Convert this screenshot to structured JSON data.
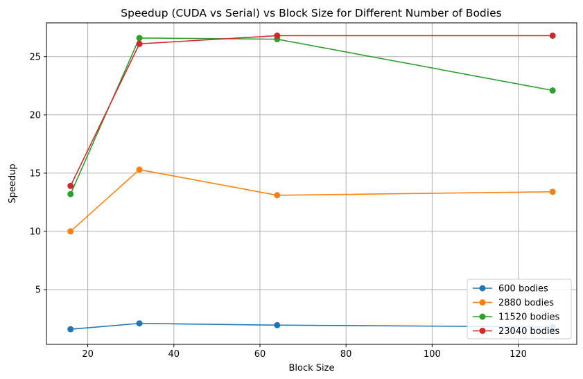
{
  "chart_data": {
    "type": "line",
    "title": "Speedup (CUDA vs Serial) vs Block Size for Different Number of Bodies",
    "xlabel": "Block Size",
    "ylabel": "Speedup",
    "x": [
      16,
      32,
      64,
      128
    ],
    "xticks": [
      20,
      40,
      60,
      80,
      100,
      120
    ],
    "yticks": [
      5,
      10,
      15,
      20,
      25
    ],
    "xlim": [
      10.4,
      133.6
    ],
    "ylim": [
      0.3,
      27.9
    ],
    "grid": true,
    "legend_position": "lower right",
    "series": [
      {
        "name": "600 bodies",
        "color": "#1f77b4",
        "values": [
          1.6,
          2.1,
          1.95,
          1.8
        ]
      },
      {
        "name": "2880 bodies",
        "color": "#ff7f0e",
        "values": [
          10.0,
          15.3,
          13.1,
          13.4
        ]
      },
      {
        "name": "11520 bodies",
        "color": "#2ca02c",
        "values": [
          13.2,
          26.6,
          26.5,
          22.1
        ]
      },
      {
        "name": "23040 bodies",
        "color": "#d62728",
        "values": [
          13.9,
          26.1,
          26.8,
          26.8
        ]
      }
    ]
  }
}
